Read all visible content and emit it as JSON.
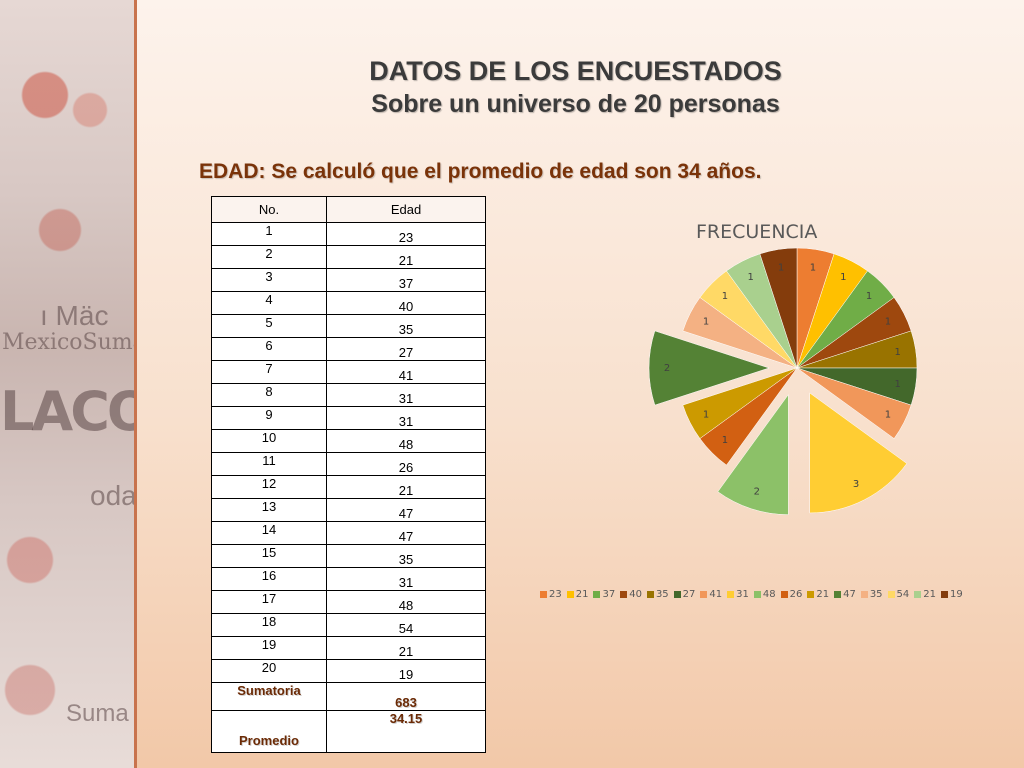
{
  "title_line1": "DATOS DE LOS ENCUESTADOS",
  "title_line2": "Sobre un universo de 20 personas",
  "subtitle": "EDAD: Se calculó que el promedio de edad son 34 años.",
  "deco_text": [
    "ı Mäc",
    "MexicoSuma",
    "LACORRUPC",
    "odas",
    "Suma"
  ],
  "table": {
    "headers": [
      "No.",
      "Edad"
    ],
    "rows": [
      [
        "1",
        "23"
      ],
      [
        "2",
        "21"
      ],
      [
        "3",
        "37"
      ],
      [
        "4",
        "40"
      ],
      [
        "5",
        "35"
      ],
      [
        "6",
        "27"
      ],
      [
        "7",
        "41"
      ],
      [
        "8",
        "31"
      ],
      [
        "9",
        "31"
      ],
      [
        "10",
        "48"
      ],
      [
        "11",
        "26"
      ],
      [
        "12",
        "21"
      ],
      [
        "13",
        "47"
      ],
      [
        "14",
        "47"
      ],
      [
        "15",
        "35"
      ],
      [
        "16",
        "31"
      ],
      [
        "17",
        "48"
      ],
      [
        "18",
        "54"
      ],
      [
        "19",
        "21"
      ],
      [
        "20",
        "19"
      ]
    ],
    "sum_label": "Sumatoria",
    "sum_value": "683",
    "avg_label": "Promedio",
    "avg_value": "34.15"
  },
  "chart_data": {
    "type": "pie",
    "title": "FRECUENCIA",
    "categories": [
      "23",
      "21",
      "37",
      "40",
      "35",
      "27",
      "41",
      "31",
      "48",
      "26",
      "21",
      "47",
      "35",
      "54",
      "21",
      "19"
    ],
    "values": [
      1,
      1,
      1,
      1,
      1,
      1,
      1,
      3,
      2,
      1,
      1,
      2,
      1,
      1,
      1,
      1
    ],
    "exploded": [
      false,
      false,
      false,
      false,
      false,
      false,
      false,
      true,
      true,
      false,
      false,
      true,
      false,
      false,
      false,
      false
    ],
    "colors": [
      "#ed7d31",
      "#ffc000",
      "#70ad47",
      "#9e480e",
      "#997300",
      "#43682b",
      "#f1975a",
      "#ffcd33",
      "#8cc168",
      "#d26012",
      "#cc9a00",
      "#548235",
      "#f4b183",
      "#ffd966",
      "#a9d08e",
      "#843c0c"
    ],
    "legend_position": "bottom"
  }
}
